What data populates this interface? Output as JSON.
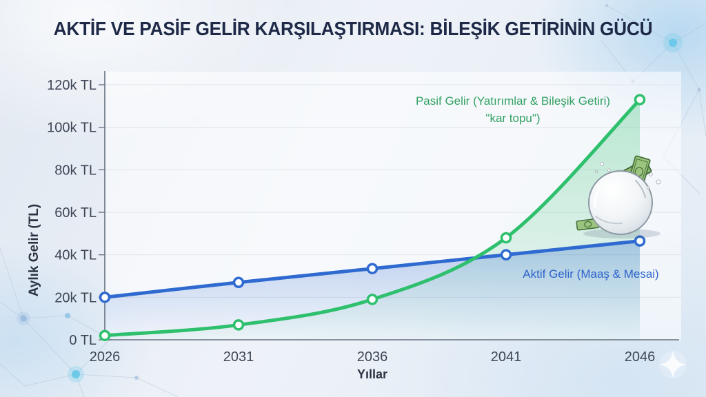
{
  "chart_data": {
    "type": "line",
    "title": "AKTİF VE PASİF GELİR KARŞILAŞTIRMASI: BİLEŞİK GETİRİNİN GÜCÜ",
    "xlabel": "Yıllar",
    "ylabel": "Aylık Gelir (TL)",
    "x": [
      2026,
      2031,
      2036,
      2041,
      2046
    ],
    "yticks": [
      0,
      20000,
      40000,
      60000,
      80000,
      100000,
      120000
    ],
    "ytick_labels": [
      "0 TL",
      "20k TL",
      "40k TL",
      "60k TL",
      "80k TL",
      "100k TL",
      "120k TL"
    ],
    "ylim": [
      0,
      120000
    ],
    "grid": true,
    "legend_position": "inline-annotations",
    "series": [
      {
        "name": "Pasif Gelir (Yatırımlar & Bileşik Getiri) \"kar topu\"",
        "color": "#2ec06d",
        "values": [
          2000,
          7000,
          19000,
          48000,
          113000
        ]
      },
      {
        "name": "Aktif Gelir (Maaş & Mesai)",
        "color": "#2f6ad0",
        "values": [
          20000,
          27000,
          33500,
          40000,
          46500
        ]
      }
    ]
  },
  "annotations": {
    "passive_line1": "Pasif Gelir (Yatırımlar & Bileşik Getiri)",
    "passive_line2": "\"kar topu\")",
    "active_label": "Aktif Gelir (Maaş & Mesai)"
  },
  "illustration": {
    "name": "snowball-with-money-bills"
  },
  "colors": {
    "passive_green": "#2ec06d",
    "active_blue": "#2f6ad0",
    "title_navy": "#1d2947",
    "axis_gray": "#667080",
    "glow_cyan": "#54c3e6"
  }
}
